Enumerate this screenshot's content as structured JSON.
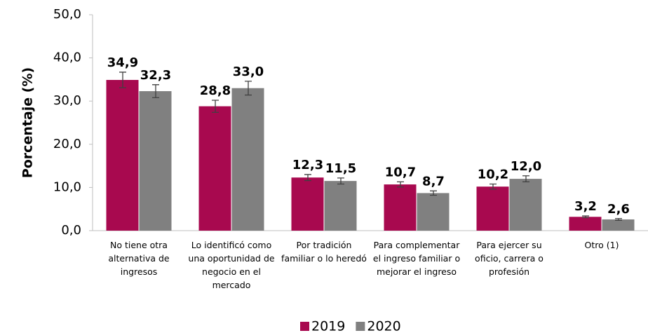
{
  "chart_data": {
    "type": "bar",
    "y_label": "Porcentaje (%)",
    "categories": [
      "No tiene otra alternativa de ingresos",
      "Lo identificó como una oportunidad de negocio en el mercado",
      "Por tradición familiar o lo heredó",
      "Para complementar el ingreso familiar o mejorar el ingreso",
      "Para ejercer su oficio, carrera o profesión",
      "Otro (1)"
    ],
    "series": [
      {
        "name": "2019",
        "color": "#a8094f",
        "values": [
          34.9,
          28.8,
          12.3,
          10.7,
          10.2,
          3.2
        ],
        "value_labels": [
          "34,9",
          "28,8",
          "12,3",
          "10,7",
          "10,2",
          "3,2"
        ],
        "errors": [
          1.8,
          1.4,
          0.7,
          0.6,
          0.6,
          0.2
        ]
      },
      {
        "name": "2020",
        "color": "#808080",
        "values": [
          32.3,
          33.0,
          11.5,
          8.7,
          12.0,
          2.6
        ],
        "value_labels": [
          "32,3",
          "33,0",
          "11,5",
          "8,7",
          "12,0",
          "2,6"
        ],
        "errors": [
          1.5,
          1.6,
          0.7,
          0.5,
          0.7,
          0.2
        ]
      }
    ],
    "ylim": [
      0,
      50
    ],
    "yticks": [
      {
        "value": 0,
        "label": "0,0"
      },
      {
        "value": 10,
        "label": "10,0"
      },
      {
        "value": 20,
        "label": "20,0"
      },
      {
        "value": 30,
        "label": "30,0"
      },
      {
        "value": 40,
        "label": "40,0"
      },
      {
        "value": 50,
        "label": "50,0"
      }
    ],
    "legend": "bottom"
  }
}
